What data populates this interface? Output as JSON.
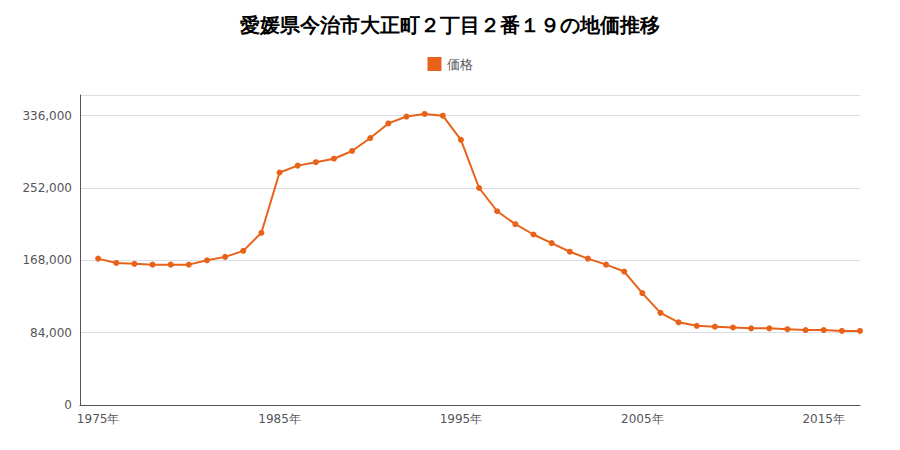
{
  "chart_data": {
    "type": "line",
    "title": "愛媛県今治市大正町２丁目２番１９の地価推移",
    "x": [
      1975,
      1976,
      1977,
      1978,
      1979,
      1980,
      1981,
      1982,
      1983,
      1984,
      1985,
      1986,
      1987,
      1988,
      1989,
      1990,
      1991,
      1992,
      1993,
      1994,
      1995,
      1996,
      1997,
      1998,
      1999,
      2000,
      2001,
      2002,
      2003,
      2004,
      2005,
      2006,
      2007,
      2008,
      2009,
      2010,
      2011,
      2012,
      2013,
      2014,
      2015,
      2016,
      2017
    ],
    "series": [
      {
        "name": "価格",
        "color": "#e8621a",
        "values": [
          170000,
          165000,
          164000,
          163000,
          163000,
          163000,
          168000,
          172000,
          179000,
          200000,
          270000,
          278000,
          282000,
          286000,
          295000,
          310000,
          327000,
          335000,
          338000,
          336000,
          308000,
          252000,
          225000,
          210000,
          198000,
          188000,
          178000,
          170000,
          163000,
          155000,
          130000,
          107000,
          96000,
          92000,
          91000,
          90000,
          89000,
          89000,
          88000,
          87000,
          87000,
          86000,
          86000
        ]
      }
    ],
    "xlim": [
      1974,
      2017
    ],
    "ylim": [
      0,
      360000
    ],
    "xticks": [
      {
        "value": 1975,
        "label": "1975年"
      },
      {
        "value": 1985,
        "label": "1985年"
      },
      {
        "value": 1995,
        "label": "1995年"
      },
      {
        "value": 2005,
        "label": "2005年"
      },
      {
        "value": 2015,
        "label": "2015年"
      }
    ],
    "yticks": [
      0,
      {
        "value": 84000,
        "label": "84,000"
      },
      {
        "value": 168000,
        "label": "168,000"
      },
      {
        "value": 252000,
        "label": "252,000"
      },
      {
        "value": 336000,
        "label": "336,000"
      }
    ],
    "grid": true,
    "legend": "top",
    "marker": "circle"
  }
}
